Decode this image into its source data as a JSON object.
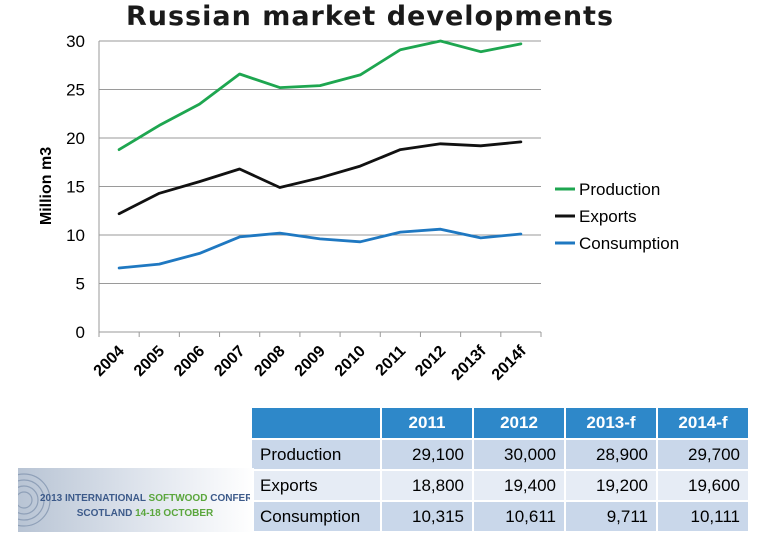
{
  "chart_data": {
    "type": "line",
    "title": "Russian market developments",
    "ylabel": "Million m3",
    "xlabel": "",
    "ylim": [
      0,
      30
    ],
    "yticks": [
      0,
      5,
      10,
      15,
      20,
      25,
      30
    ],
    "categories": [
      "2004",
      "2005",
      "2006",
      "2007",
      "2008",
      "2009",
      "2010",
      "2011",
      "2012",
      "2013f",
      "2014f"
    ],
    "grid": true,
    "legend_position": "right",
    "series": [
      {
        "name": "Production",
        "color": "#1ea650",
        "values": [
          18.8,
          21.3,
          23.5,
          26.6,
          25.2,
          25.4,
          26.5,
          29.1,
          30.0,
          28.9,
          29.7
        ]
      },
      {
        "name": "Exports",
        "color": "#111111",
        "values": [
          12.2,
          14.3,
          15.5,
          16.8,
          14.9,
          15.9,
          17.1,
          18.8,
          19.4,
          19.2,
          19.6
        ]
      },
      {
        "name": "Consumption",
        "color": "#1f78c1",
        "values": [
          6.6,
          7.0,
          8.1,
          9.8,
          10.2,
          9.6,
          9.3,
          10.3,
          10.6,
          9.7,
          10.1
        ]
      }
    ]
  },
  "table": {
    "headers": [
      "",
      "2011",
      "2012",
      "2013-f",
      "2014-f"
    ],
    "rows": [
      {
        "label": "Production",
        "values": [
          "29,100",
          "30,000",
          "28,900",
          "29,700"
        ]
      },
      {
        "label": "Exports",
        "values": [
          "18,800",
          "19,400",
          "19,200",
          "19,600"
        ]
      },
      {
        "label": "Consumption",
        "values": [
          "10,315",
          "10,611",
          "9,711",
          "10,111"
        ]
      }
    ]
  },
  "conference": {
    "line1_prefix": "2013 INTERNATIONAL ",
    "line1_highlight": "SOFTWOOD",
    "line1_suffix": " CONFERENCE",
    "line2_prefix": "SCOTLAND ",
    "line2_highlight": "14-18 OCTOBER"
  }
}
